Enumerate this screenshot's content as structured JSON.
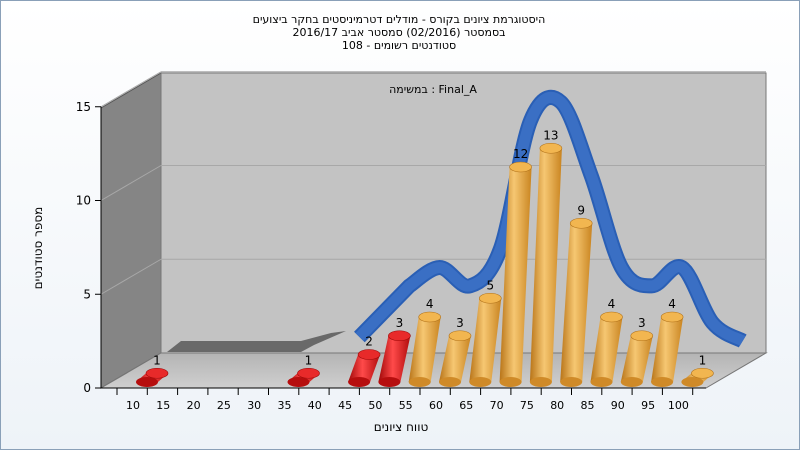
{
  "chart_data": {
    "type": "bar",
    "title_lines": [
      "היסטוגרמת ציונים בקורס - מודלים דטרמיניסטים בחקר ביצועים",
      "בסמסטר  (02/2016)  סמסטר אביב 2016/17",
      "סטודנטים רשומים - 108"
    ],
    "inner_label": "במשימה : Final_A",
    "xlabel": "טווח ציונים",
    "ylabel": "מספר סטודנטים",
    "ylim": [
      0,
      15
    ],
    "yticks": [
      0,
      5,
      10,
      15
    ],
    "categories": [
      "10",
      "15",
      "20",
      "25",
      "30",
      "35",
      "40",
      "45",
      "50",
      "55",
      "60",
      "65",
      "70",
      "75",
      "80",
      "85",
      "90",
      "95",
      "100"
    ],
    "values": [
      1,
      0,
      0,
      0,
      0,
      1,
      0,
      2,
      3,
      4,
      3,
      5,
      12,
      13,
      9,
      4,
      3,
      4,
      1
    ],
    "bar_colors": [
      "red",
      "red",
      "red",
      "red",
      "red",
      "red",
      "red",
      "red",
      "red",
      "orange",
      "orange",
      "orange",
      "orange",
      "orange",
      "orange",
      "orange",
      "orange",
      "orange",
      "orange"
    ],
    "colors": {
      "red": "#dd1111",
      "orange": "#e8a23a",
      "curve": "#3a6fc4",
      "floor": "#c0c0c0",
      "wall_left": "#888888",
      "wall_back": "#c0c0c0"
    },
    "grid": true,
    "legend": "none"
  }
}
